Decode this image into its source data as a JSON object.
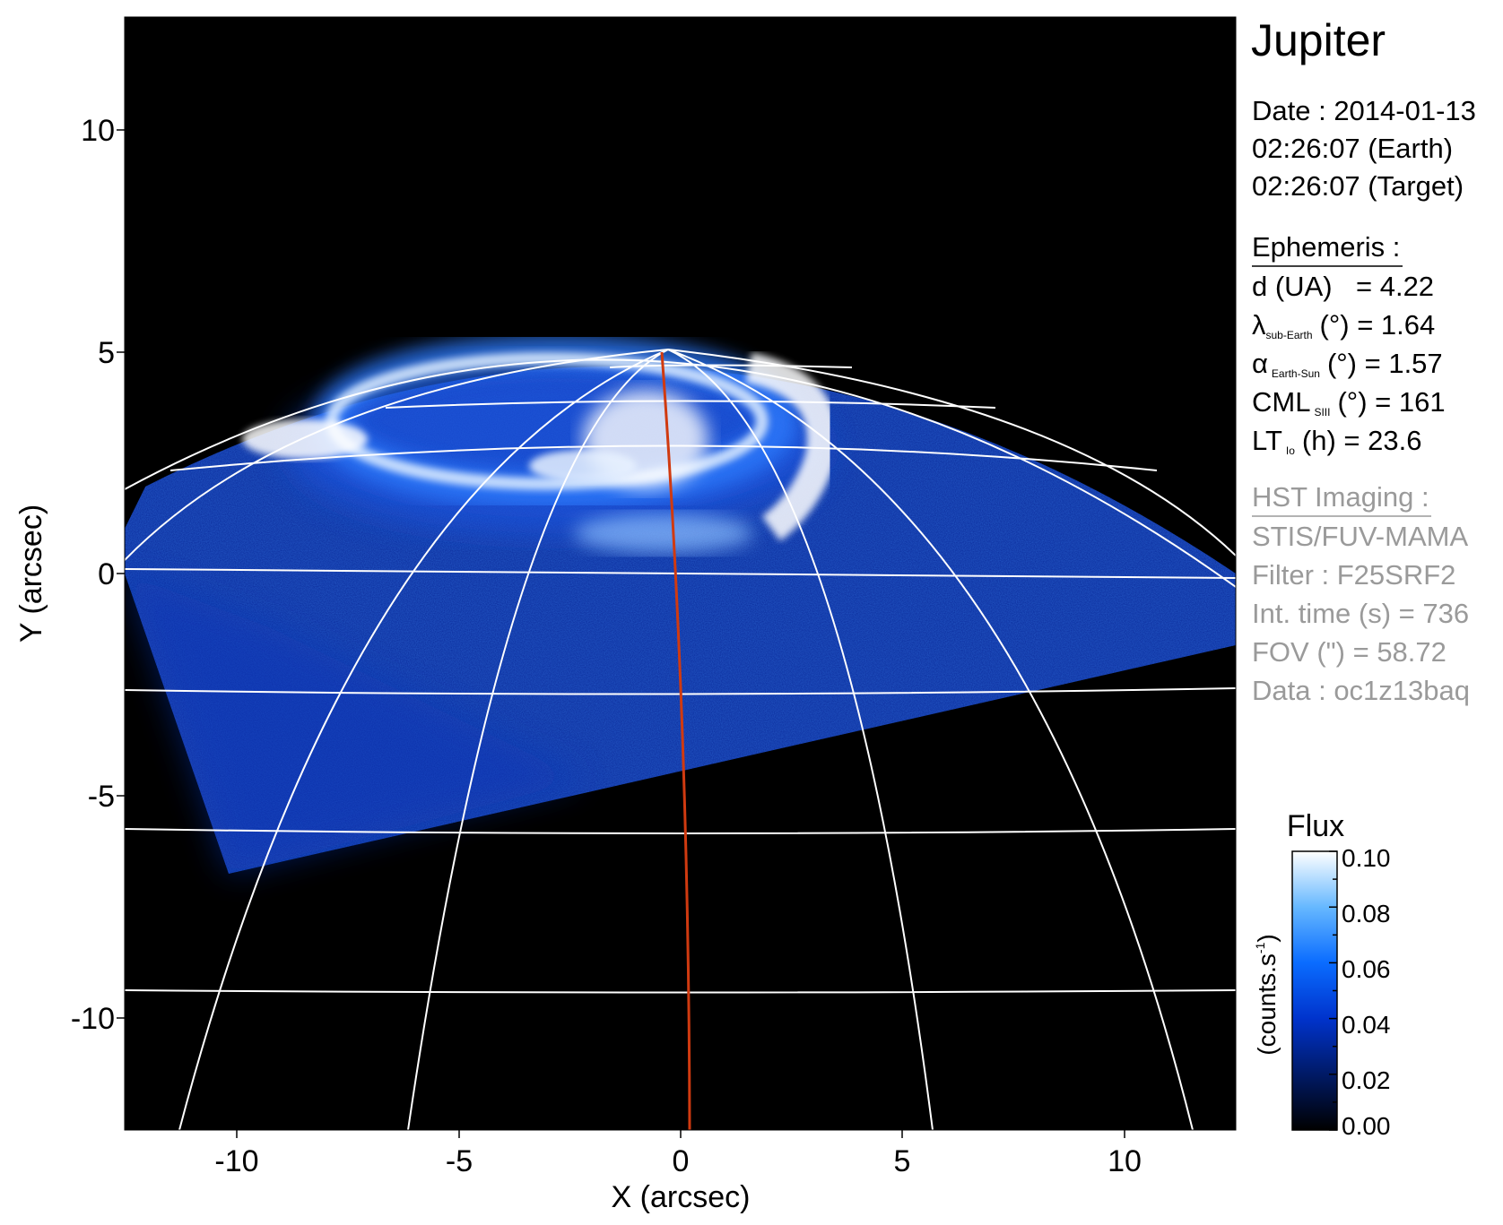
{
  "title": "Jupiter",
  "date": {
    "label": "Date : 2014-01-13",
    "earth_time": "02:26:07 (Earth)",
    "target_time": "02:26:07 (Target)"
  },
  "ephemeris": {
    "heading": "Ephemeris :",
    "d_label": "d (UA)",
    "d_value": "= 4.22",
    "lat_symbol": "λ",
    "lat_sub": "sub-Earth",
    "lat_rest": "(°) = 1.64",
    "phase_symbol": "α",
    "phase_sub": "Earth-Sun",
    "phase_rest": "(°) = 1.57",
    "cml_symbol": "CML",
    "cml_sub": "SIII",
    "cml_rest": "(°) = 161",
    "lt_symbol": "LT",
    "lt_sub": "Io",
    "lt_rest": "(h) = 23.6"
  },
  "hst": {
    "heading": "HST Imaging :",
    "instrument": "STIS/FUV-MAMA",
    "filter": "Filter : F25SRF2",
    "int_time": "Int. time (s) = 736",
    "fov": "FOV (\") = 58.72",
    "data": "Data : oc1z13baq"
  },
  "colorbar": {
    "title": "Flux",
    "label_main": "(counts.s",
    "label_sup": "-1",
    "label_close": ")",
    "ticks": [
      "0.10",
      "0.08",
      "0.06",
      "0.04",
      "0.02",
      "0.00"
    ],
    "colors": [
      "#000000",
      "#001a66",
      "#0033cc",
      "#0a6cff",
      "#66b8ff",
      "#ffffff"
    ]
  },
  "axes": {
    "xlabel": "X (arcsec)",
    "ylabel": "Y (arcsec)",
    "xticks": [
      "-10",
      "-5",
      "0",
      "5",
      "10"
    ],
    "yticks": [
      "10",
      "5",
      "0",
      "-5",
      "-10"
    ]
  },
  "colors": {
    "background": "#000000",
    "grid": "#ffffff",
    "meridian": "#d03a10",
    "aurora_dim": "#0a2fb0",
    "aurora_bright": "#ffffff",
    "hst_text": "#9a9a9a"
  }
}
